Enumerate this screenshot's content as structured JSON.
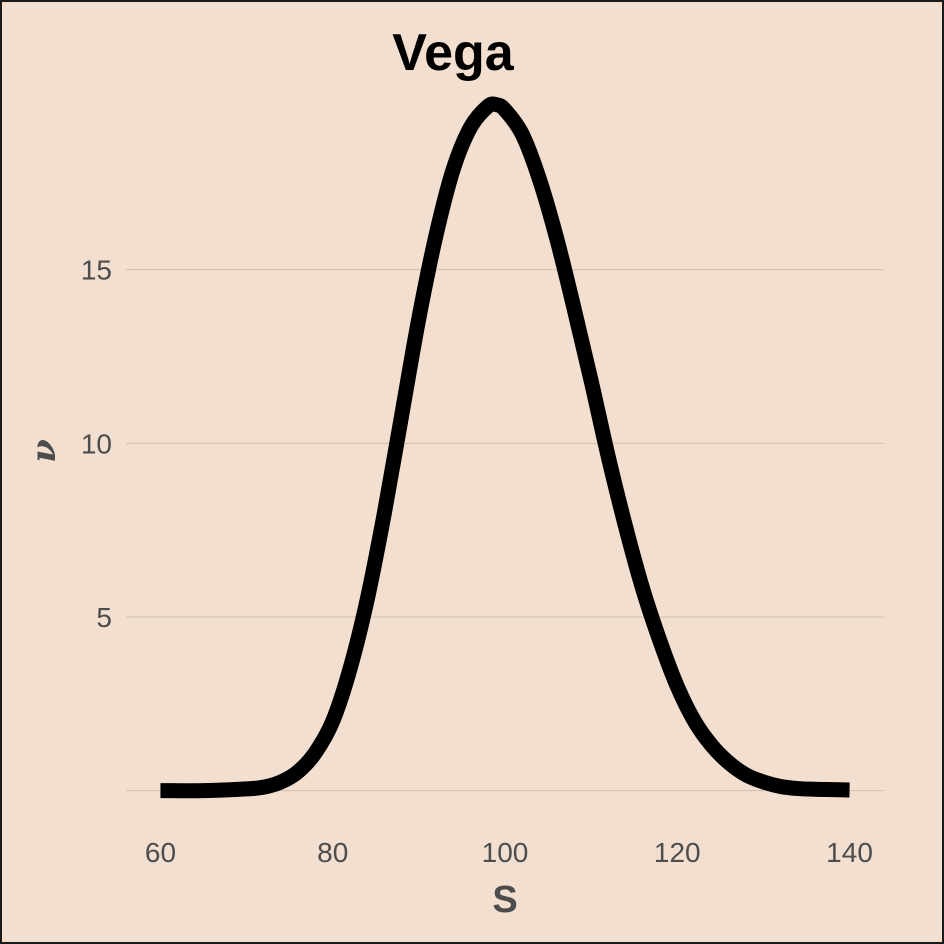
{
  "chart_data": {
    "type": "line",
    "title": "Vega",
    "xlabel": "S",
    "ylabel": "ν",
    "xlim": [
      56,
      144
    ],
    "ylim": [
      -0.5,
      20
    ],
    "x_ticks": [
      60,
      80,
      100,
      120,
      140
    ],
    "y_ticks": [
      5,
      10,
      15
    ],
    "grid": "horizontal-major",
    "background": "#f2dfcf",
    "line_color": "#000000",
    "series": [
      {
        "x": [
          60,
          65,
          70,
          72,
          74,
          76,
          78,
          80,
          82,
          84,
          86,
          88,
          90,
          92,
          94,
          96,
          98,
          99,
          100,
          102,
          104,
          106,
          108,
          110,
          112,
          114,
          116,
          118,
          120,
          122,
          124,
          126,
          128,
          130,
          132,
          134,
          136,
          138,
          140
        ],
        "values": [
          0.0,
          0.0,
          0.05,
          0.1,
          0.25,
          0.55,
          1.1,
          2.0,
          3.5,
          5.5,
          8.0,
          10.8,
          13.6,
          16.0,
          17.9,
          19.1,
          19.7,
          19.75,
          19.6,
          18.9,
          17.6,
          15.9,
          13.9,
          11.8,
          9.6,
          7.6,
          5.8,
          4.3,
          3.0,
          2.0,
          1.3,
          0.8,
          0.45,
          0.25,
          0.12,
          0.06,
          0.04,
          0.03,
          0.02
        ]
      }
    ]
  }
}
